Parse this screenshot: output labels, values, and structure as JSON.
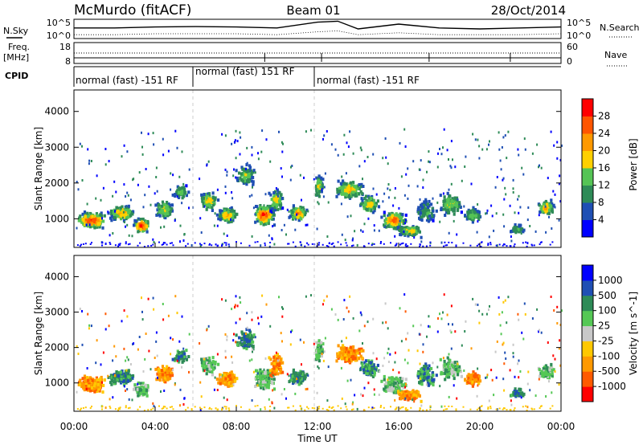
{
  "header": {
    "station": "McMurdo (fitACF)",
    "beam": "Beam 01",
    "date": "28/Oct/2014"
  },
  "left_labels": {
    "nsky": "N.Sky",
    "freq": "Freq.",
    "freq_unit": "[MHz]",
    "cpid": "CPID"
  },
  "right_labels": {
    "nsearch": "N.Search",
    "nave": "Nave"
  },
  "cpid_segments": [
    {
      "label": "normal (fast) -151 RF",
      "start_hour": 0,
      "end_hour": 6
    },
    {
      "label": "normal (fast) 151 RF",
      "start_hour": 6,
      "end_hour": 12
    },
    {
      "label": "normal (fast) -151 RF",
      "start_hour": 12,
      "end_hour": 24
    }
  ],
  "colors": {
    "power": [
      "#0000ff",
      "#1f4fb4",
      "#2e8b57",
      "#55c455",
      "#ffd000",
      "#ff9900",
      "#ff5500",
      "#ff0000"
    ],
    "velocity": [
      "#ff0000",
      "#ff5a00",
      "#ff9900",
      "#ffc800",
      "#c8c8c8",
      "#55c855",
      "#2e8b57",
      "#1f4fb4",
      "#0000ff"
    ]
  },
  "chart_data": [
    {
      "type": "line",
      "name": "noise-panel",
      "left_axis_ticks": [
        "10^5",
        "10^0"
      ],
      "right_axis_ticks": [
        "10^5",
        "10^0"
      ],
      "x": [
        0,
        2,
        4,
        6,
        8,
        10,
        12,
        13,
        14,
        16,
        18,
        20,
        22,
        24
      ],
      "series": [
        {
          "name": "N.Sky",
          "values": [
            0.55,
            0.55,
            0.6,
            0.62,
            0.6,
            0.55,
            0.85,
            0.9,
            0.5,
            0.75,
            0.55,
            0.5,
            0.55,
            0.6
          ]
        },
        {
          "name": "N.Search",
          "values": [
            0.2,
            0.2,
            0.25,
            0.25,
            0.25,
            0.2,
            0.35,
            0.4,
            0.2,
            0.3,
            0.2,
            0.2,
            0.2,
            0.25
          ]
        }
      ]
    },
    {
      "type": "line",
      "name": "frequency-panel",
      "left_axis_ticks": [
        "18",
        "8"
      ],
      "right_axis_ticks": [
        "60",
        "0"
      ],
      "x": [
        0,
        24
      ],
      "series": [
        {
          "name": "Freq.",
          "values": [
            0.5,
            0.5
          ]
        },
        {
          "name": "Nave",
          "values": [
            0.25,
            0.25
          ]
        }
      ]
    },
    {
      "type": "heatmap",
      "name": "power",
      "ylabel": "Slant Range [km]",
      "ylim": [
        200,
        4600
      ],
      "xlim": [
        0,
        24
      ],
      "yticks": [
        "1000",
        "2000",
        "3000",
        "4000"
      ],
      "colorbar": {
        "label": "Power [dB]",
        "ticks": [
          "4",
          "8",
          "12",
          "16",
          "20",
          "24",
          "28"
        ],
        "range": [
          0,
          32
        ]
      }
    },
    {
      "type": "heatmap",
      "name": "velocity",
      "ylabel": "Slant Range [km]",
      "ylim": [
        200,
        4600
      ],
      "xlim": [
        0,
        24
      ],
      "yticks": [
        "1000",
        "2000",
        "3000",
        "4000"
      ],
      "xticks": [
        "00:00",
        "04:00",
        "08:00",
        "12:00",
        "16:00",
        "20:00",
        "00:00"
      ],
      "xlabel": "Time UT",
      "colorbar": {
        "label": "Velocity [m s^-1]",
        "ticks": [
          "-1000",
          "-500",
          "-100",
          "-25",
          "25",
          "100",
          "500",
          "1000"
        ]
      }
    }
  ]
}
